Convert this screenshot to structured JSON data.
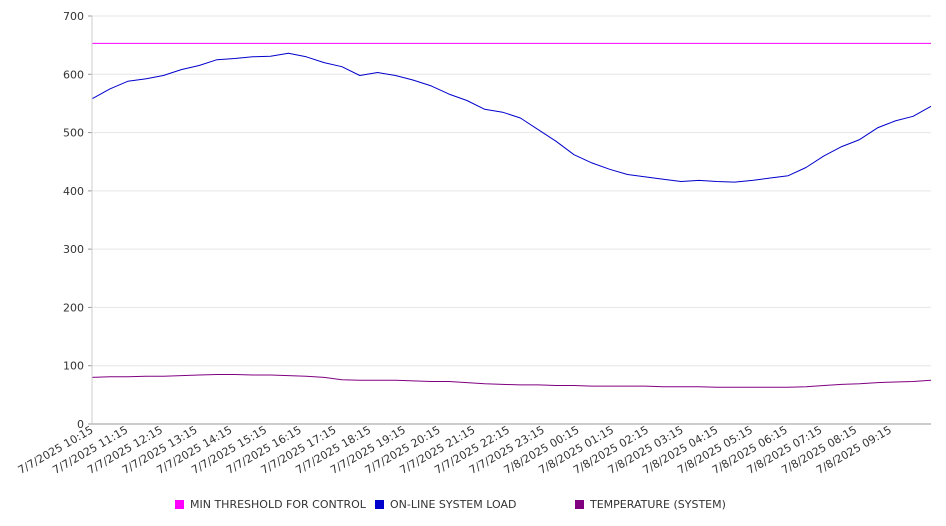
{
  "chart_data": {
    "type": "line",
    "ylim": [
      0,
      700
    ],
    "y_ticks": [
      0,
      100,
      200,
      300,
      400,
      500,
      600,
      700
    ],
    "grid": "horizontal",
    "legend_placement": "bottom",
    "x_tick_labels": [
      "7/7/2025 10:15",
      "7/7/2025 11:15",
      "7/7/2025 12:15",
      "7/7/2025 13:15",
      "7/7/2025 14:15",
      "7/7/2025 15:15",
      "7/7/2025 16:15",
      "7/7/2025 17:15",
      "7/7/2025 18:15",
      "7/7/2025 19:15",
      "7/7/2025 20:15",
      "7/7/2025 21:15",
      "7/7/2025 22:15",
      "7/7/2025 23:15",
      "7/8/2025 00:15",
      "7/8/2025 01:15",
      "7/8/2025 02:15",
      "7/8/2025 03:15",
      "7/8/2025 04:15",
      "7/8/2025 05:15",
      "7/8/2025 06:15",
      "7/8/2025 07:15",
      "7/8/2025 08:15",
      "7/8/2025 09:15"
    ],
    "x": [
      "7/7/2025 10:15",
      "7/7/2025 10:45",
      "7/7/2025 11:15",
      "7/7/2025 11:45",
      "7/7/2025 12:15",
      "7/7/2025 12:45",
      "7/7/2025 13:15",
      "7/7/2025 13:45",
      "7/7/2025 14:15",
      "7/7/2025 14:45",
      "7/7/2025 15:15",
      "7/7/2025 15:45",
      "7/7/2025 16:15",
      "7/7/2025 16:45",
      "7/7/2025 17:15",
      "7/7/2025 17:45",
      "7/7/2025 18:15",
      "7/7/2025 18:45",
      "7/7/2025 19:15",
      "7/7/2025 19:45",
      "7/7/2025 20:15",
      "7/7/2025 20:45",
      "7/7/2025 21:15",
      "7/7/2025 21:45",
      "7/7/2025 22:15",
      "7/7/2025 22:45",
      "7/7/2025 23:15",
      "7/7/2025 23:45",
      "7/8/2025 00:15",
      "7/8/2025 00:45",
      "7/8/2025 01:15",
      "7/8/2025 01:45",
      "7/8/2025 02:15",
      "7/8/2025 02:45",
      "7/8/2025 03:15",
      "7/8/2025 03:45",
      "7/8/2025 04:15",
      "7/8/2025 04:45",
      "7/8/2025 05:15",
      "7/8/2025 05:45",
      "7/8/2025 06:15",
      "7/8/2025 06:45",
      "7/8/2025 07:15",
      "7/8/2025 07:45",
      "7/8/2025 08:15",
      "7/8/2025 08:45",
      "7/8/2025 09:15",
      "7/8/2025 09:45"
    ],
    "series": [
      {
        "name": "MIN THRESHOLD FOR CONTROL",
        "color": "#ff00ff",
        "values": [
          653,
          653,
          653,
          653,
          653,
          653,
          653,
          653,
          653,
          653,
          653,
          653,
          653,
          653,
          653,
          653,
          653,
          653,
          653,
          653,
          653,
          653,
          653,
          653,
          653,
          653,
          653,
          653,
          653,
          653,
          653,
          653,
          653,
          653,
          653,
          653,
          653,
          653,
          653,
          653,
          653,
          653,
          653,
          653,
          653,
          653,
          653,
          653
        ]
      },
      {
        "name": "ON-LINE SYSTEM LOAD",
        "color": "#0000cc",
        "values": [
          558,
          575,
          588,
          592,
          598,
          608,
          615,
          625,
          627,
          630,
          631,
          636,
          630,
          620,
          613,
          598,
          603,
          598,
          590,
          580,
          566,
          555,
          540,
          535,
          525,
          505,
          485,
          462,
          448,
          437,
          428,
          424,
          420,
          416,
          418,
          416,
          415,
          418,
          422,
          426,
          440,
          460,
          476,
          488,
          508,
          520,
          528,
          545
        ]
      },
      {
        "name": "TEMPERATURE (SYSTEM)",
        "color": "#800080",
        "values": [
          80,
          81,
          81,
          82,
          82,
          83,
          84,
          85,
          85,
          84,
          84,
          83,
          82,
          80,
          76,
          75,
          75,
          75,
          74,
          73,
          73,
          71,
          69,
          68,
          67,
          67,
          66,
          66,
          65,
          65,
          65,
          65,
          64,
          64,
          64,
          63,
          63,
          63,
          63,
          63,
          64,
          66,
          68,
          69,
          71,
          72,
          73,
          75
        ]
      }
    ]
  }
}
